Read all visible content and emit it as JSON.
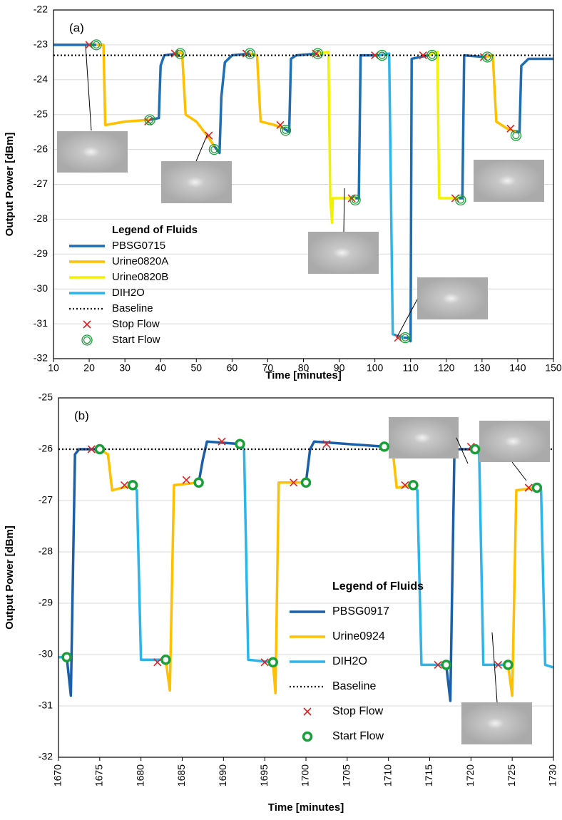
{
  "chart_data": [
    {
      "type": "line",
      "panel_label": "(a)",
      "x_label": "Time [minutes]",
      "y_label": "Output Power [dBm]",
      "xlim": [
        10,
        150
      ],
      "ylim": [
        -32,
        -22
      ],
      "xticks": [
        10,
        20,
        30,
        40,
        50,
        60,
        70,
        80,
        90,
        100,
        110,
        120,
        130,
        140,
        150
      ],
      "yticks": [
        -32,
        -31,
        -30,
        -29,
        -28,
        -27,
        -26,
        -25,
        -24,
        -23,
        -22
      ],
      "grid": true,
      "legend": "lower left",
      "legend_title": "Legend of Fluids",
      "series": [
        {
          "name": "PBSG0715",
          "color": "#1f6db3",
          "kind": "line",
          "x": [
            10,
            22,
            null,
            37,
            39.5,
            40,
            41,
            45,
            null,
            55,
            56.5,
            57,
            58,
            60,
            65,
            null,
            74.5,
            76,
            76.5,
            78,
            84,
            null,
            94.5,
            95.5,
            96,
            101,
            null,
            108,
            109.5,
            110,
            110.3,
            115,
            null,
            123.5,
            124.5,
            125,
            131,
            null,
            139.5,
            140.5,
            141,
            143,
            150
          ],
          "values": [
            -23,
            -23,
            null,
            -25.15,
            -25.1,
            -23.6,
            -23.3,
            -23.25,
            null,
            -25.9,
            -26.1,
            -24.5,
            -23.5,
            -23.3,
            -23.25,
            null,
            -25.4,
            -25.5,
            -23.4,
            -23.3,
            -23.25,
            null,
            -27.4,
            -27.4,
            -23.3,
            -23.3,
            null,
            -31.4,
            -31.4,
            -31.5,
            -23.4,
            -23.3,
            null,
            -27.4,
            -27.4,
            -23.3,
            -23.35,
            null,
            -25.5,
            -25.5,
            -23.6,
            -23.4,
            -23.4
          ]
        },
        {
          "name": "Urine0820A",
          "color": "#ffc000",
          "kind": "line",
          "x": [
            22,
            24,
            24.5,
            30,
            37,
            null,
            45,
            46,
            47,
            50,
            53,
            55,
            null,
            65,
            67,
            68,
            72,
            74.5,
            null,
            131,
            133,
            134,
            137,
            139.5
          ],
          "values": [
            -23,
            -23,
            -25.3,
            -25.2,
            -25.15,
            null,
            -23.25,
            -23.2,
            -25.0,
            -25.2,
            -25.6,
            -25.9,
            null,
            -23.25,
            -23.3,
            -25.2,
            -25.3,
            -25.4,
            null,
            -23.35,
            -23.3,
            -25.2,
            -25.4,
            -25.5
          ]
        },
        {
          "name": "Urine0820B",
          "color": "#f2f200",
          "kind": "line",
          "x": [
            84,
            87,
            87.5,
            88,
            88.2,
            94.5,
            null,
            115,
            117.5,
            118,
            123.5
          ],
          "values": [
            -23.25,
            -23.2,
            -27.4,
            -28.1,
            -27.4,
            -27.4,
            null,
            -23.3,
            -23.2,
            -27.4,
            -27.4
          ]
        },
        {
          "name": "DIH2O",
          "color": "#2cb5ea",
          "kind": "line",
          "x": [
            101,
            104,
            105,
            108
          ],
          "values": [
            -23.3,
            -23.25,
            -31.3,
            -31.4
          ]
        },
        {
          "name": "Baseline",
          "color": "#000000",
          "kind": "baseline",
          "value": -23.3
        },
        {
          "name": "Stop Flow",
          "color": "#e02020",
          "kind": "cross",
          "x": [
            20,
            36.5,
            44,
            53.5,
            64,
            73.5,
            83.5,
            93.5,
            100,
            106.5,
            113.5,
            122.5,
            130.5,
            138
          ],
          "values": [
            -23,
            -25.2,
            -23.25,
            -25.6,
            -23.25,
            -25.3,
            -23.25,
            -27.4,
            -23.3,
            -31.4,
            -23.3,
            -27.4,
            -23.35,
            -25.4
          ]
        },
        {
          "name": "Start Flow",
          "color": "#1a9e3a",
          "kind": "double-ring",
          "x": [
            22,
            37,
            45.5,
            55,
            65,
            75,
            84,
            94.5,
            102,
            108.5,
            116,
            124,
            131.5,
            139.5
          ],
          "values": [
            -23,
            -25.15,
            -23.25,
            -26,
            -23.25,
            -25.45,
            -23.25,
            -27.45,
            -23.3,
            -31.4,
            -23.3,
            -27.45,
            -23.35,
            -25.6
          ]
        }
      ]
    },
    {
      "type": "line",
      "panel_label": "(b)",
      "x_label": "Time [minutes]",
      "y_label": "Output Power [dBm]",
      "xlim": [
        1670,
        1730
      ],
      "ylim": [
        -32,
        -25
      ],
      "xticks": [
        1670,
        1675,
        1680,
        1685,
        1690,
        1695,
        1700,
        1705,
        1710,
        1715,
        1720,
        1725,
        1730
      ],
      "yticks": [
        -32,
        -31,
        -30,
        -29,
        -28,
        -27,
        -26,
        -25
      ],
      "grid": true,
      "legend": "center right",
      "legend_title": "Legend of Fluids",
      "series": [
        {
          "name": "PBSG0917",
          "color": "#1a5fa8",
          "kind": "line",
          "x": [
            1671,
            1671.5,
            1672,
            1672.5,
            1675,
            null,
            1687,
            1687.5,
            1688,
            1692,
            null,
            1700,
            1700.5,
            1701,
            1709.5,
            null,
            1717,
            1717.5,
            1718,
            1720.5
          ],
          "values": [
            -30.05,
            -30.8,
            -26.1,
            -26.0,
            -26.0,
            null,
            -26.65,
            -26.2,
            -25.85,
            -25.9,
            null,
            -26.65,
            -26.0,
            -25.85,
            -25.95,
            null,
            -30.2,
            -30.9,
            -26.0,
            -26.0
          ]
        },
        {
          "name": "Urine0924",
          "color": "#ffc000",
          "kind": "line",
          "x": [
            1675,
            1676,
            1676.5,
            1679,
            null,
            1683,
            1683.5,
            1684,
            1687,
            null,
            1696,
            1696.3,
            1696.7,
            1700,
            null,
            1709.5,
            1710.5,
            1711,
            1713,
            null,
            1724.5,
            1725,
            1725.5,
            1728
          ],
          "values": [
            -26,
            -26.1,
            -26.8,
            -26.7,
            null,
            -30.1,
            -30.7,
            -26.7,
            -26.65,
            null,
            -30.15,
            -30.75,
            -26.65,
            -26.65,
            null,
            -25.95,
            -26,
            -26.75,
            -26.7,
            null,
            -30.2,
            -30.8,
            -26.8,
            -26.75
          ]
        },
        {
          "name": "DIH2O",
          "color": "#2cb5ea",
          "kind": "line",
          "x": [
            1670,
            1671,
            null,
            1679,
            1679.5,
            1680,
            1683,
            null,
            1692,
            1692.5,
            1693,
            1696,
            null,
            1713,
            1713.5,
            1714,
            1717,
            null,
            1720.5,
            1721,
            1721.5,
            1724.5,
            null,
            1728,
            1728.5,
            1729,
            1730
          ],
          "values": [
            -30.05,
            -30.05,
            null,
            -26.7,
            -26.8,
            -30.1,
            -30.1,
            null,
            -25.9,
            -26,
            -30.1,
            -30.15,
            null,
            -26.7,
            -26.8,
            -30.2,
            -30.2,
            null,
            -26,
            -26.1,
            -30.2,
            -30.2,
            null,
            -26.75,
            -26.8,
            -30.2,
            -30.25
          ]
        },
        {
          "name": "Baseline",
          "color": "#000000",
          "kind": "baseline",
          "value": -26
        },
        {
          "name": "Stop Flow",
          "color": "#e02020",
          "kind": "cross",
          "x": [
            1674,
            1678,
            1682,
            1685.5,
            1689.8,
            1695,
            1698.5,
            1702.5,
            1712,
            1716,
            1720,
            1723.3,
            1727
          ],
          "values": [
            -26,
            -26.7,
            -30.15,
            -26.6,
            -25.85,
            -30.15,
            -26.65,
            -25.9,
            -26.7,
            -30.2,
            -25.95,
            -30.2,
            -26.75
          ]
        },
        {
          "name": "Start Flow",
          "color": "#1a9e3a",
          "kind": "ring",
          "x": [
            1671,
            1675,
            1679,
            1683,
            1687,
            1692,
            1696,
            1700,
            1709.5,
            1713,
            1717,
            1720.5,
            1724.5,
            1728
          ],
          "values": [
            -30.05,
            -26,
            -26.7,
            -30.1,
            -26.65,
            -25.9,
            -30.15,
            -26.65,
            -25.95,
            -26.7,
            -30.2,
            -26,
            -30.2,
            -26.75
          ]
        }
      ]
    }
  ]
}
